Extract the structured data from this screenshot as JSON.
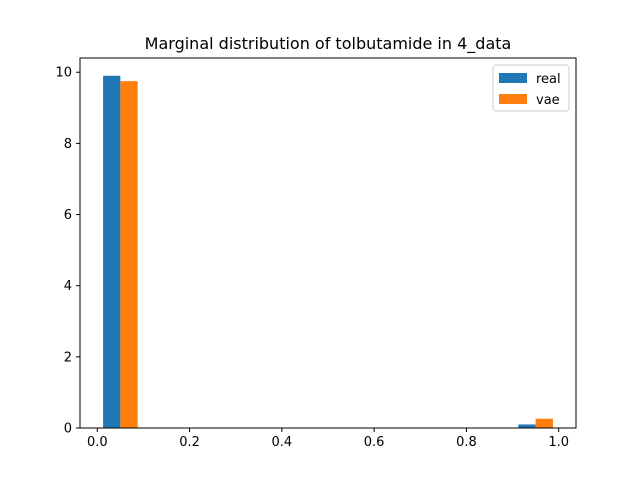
{
  "chart_data": {
    "type": "bar",
    "title": "Marginal distribution of tolbutamide in 4_data",
    "xlabel": "",
    "ylabel": "",
    "xlim": [
      -0.0375,
      1.0375
    ],
    "ylim": [
      0,
      10.4
    ],
    "x_ticks": [
      "0.0",
      "0.2",
      "0.4",
      "0.6",
      "0.8",
      "1.0"
    ],
    "y_ticks": [
      "0",
      "2",
      "4",
      "6",
      "8",
      "10"
    ],
    "legend_position": "top-right",
    "grid": false,
    "series": [
      {
        "name": "real",
        "color": "#1f77b4",
        "bins": [
          [
            0.0125,
            0.05
          ],
          [
            0.9125,
            0.95
          ]
        ],
        "values": [
          9.9,
          0.1
        ]
      },
      {
        "name": "vae",
        "color": "#ff7f0e",
        "bins": [
          [
            0.05,
            0.0875
          ],
          [
            0.95,
            0.9875
          ]
        ],
        "values": [
          9.75,
          0.26
        ]
      }
    ]
  }
}
